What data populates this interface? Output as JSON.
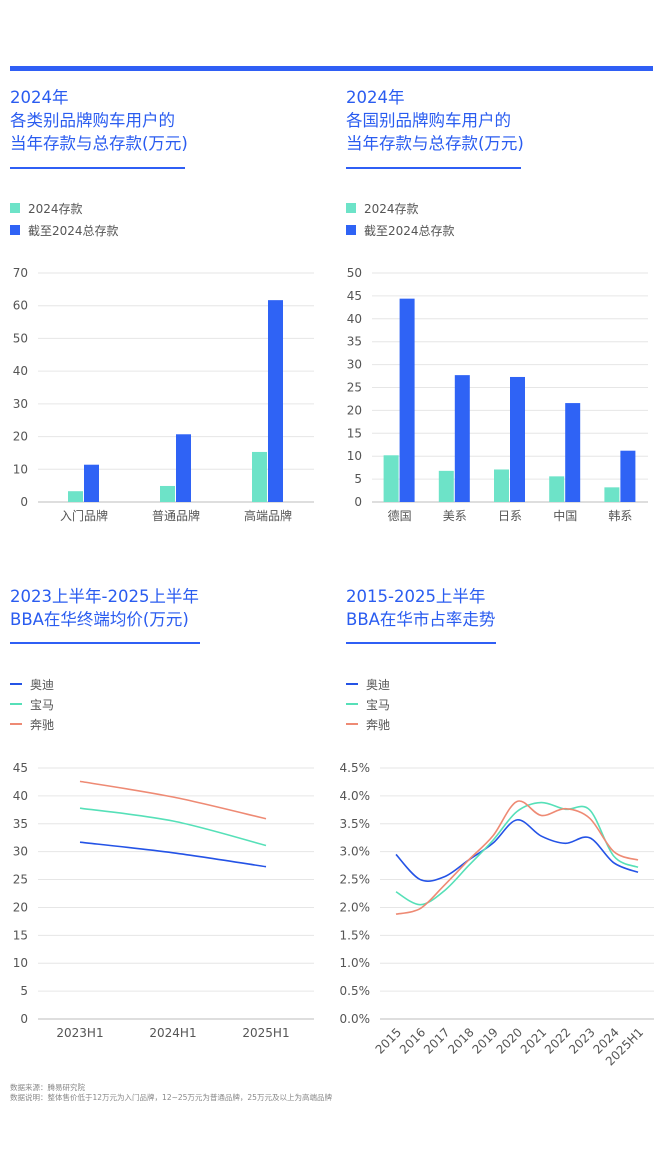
{
  "charts": [
    {
      "title_lines": [
        "2024年",
        "各类别品牌购车用户的",
        "当年存款与总存款(万元)"
      ],
      "legend": [
        {
          "label": "2024存款",
          "color": "#6de3c8",
          "kind": "bar"
        },
        {
          "label": "截至2024总存款",
          "color": "#2f63f5",
          "kind": "bar"
        }
      ]
    },
    {
      "title_lines": [
        "2024年",
        "各国别品牌购车用户的",
        "当年存款与总存款(万元)"
      ],
      "legend": [
        {
          "label": "2024存款",
          "color": "#6de3c8",
          "kind": "bar"
        },
        {
          "label": "截至2024总存款",
          "color": "#2f63f5",
          "kind": "bar"
        }
      ]
    },
    {
      "title_lines": [
        "2023上半年-2025上半年",
        "BBA在华终端均价(万元)"
      ],
      "legend": [
        {
          "label": "奥迪",
          "color": "#2453e6",
          "kind": "line"
        },
        {
          "label": "宝马",
          "color": "#56e0b8",
          "kind": "line"
        },
        {
          "label": "奔驰",
          "color": "#ee8a74",
          "kind": "line"
        }
      ]
    },
    {
      "title_lines": [
        "2015-2025上半年",
        "BBA在华市占率走势"
      ],
      "legend": [
        {
          "label": "奥迪",
          "color": "#2453e6",
          "kind": "line"
        },
        {
          "label": "宝马",
          "color": "#56e0b8",
          "kind": "line"
        },
        {
          "label": "奔驰",
          "color": "#ee8a74",
          "kind": "line"
        }
      ]
    }
  ],
  "chart_data": [
    {
      "type": "bar",
      "categories": [
        "入门品牌",
        "普通品牌",
        "高端品牌"
      ],
      "series": [
        {
          "name": "2024存款",
          "values": [
            3.3,
            4.9,
            15.3
          ],
          "color": "#6de3c8"
        },
        {
          "name": "截至2024总存款",
          "values": [
            11.4,
            20.7,
            61.7
          ],
          "color": "#2f63f5"
        }
      ],
      "ylim": [
        0,
        70
      ],
      "yticks": [
        0,
        10,
        20,
        30,
        40,
        50,
        60,
        70
      ],
      "ytick_labels": [
        "0",
        "10",
        "20",
        "30",
        "40",
        "50",
        "60",
        "70"
      ]
    },
    {
      "type": "bar",
      "categories": [
        "德国",
        "美系",
        "日系",
        "中国",
        "韩系"
      ],
      "series": [
        {
          "name": "2024存款",
          "values": [
            10.2,
            6.8,
            7.1,
            5.6,
            3.2
          ],
          "color": "#6de3c8"
        },
        {
          "name": "截至2024总存款",
          "values": [
            44.4,
            27.7,
            27.3,
            21.6,
            11.2
          ],
          "color": "#2f63f5"
        }
      ],
      "ylim": [
        0,
        50
      ],
      "yticks": [
        0,
        5,
        10,
        15,
        20,
        25,
        30,
        35,
        40,
        45,
        50
      ],
      "ytick_labels": [
        "0",
        "5",
        "10",
        "15",
        "20",
        "25",
        "30",
        "35",
        "40",
        "45",
        "50"
      ]
    },
    {
      "type": "line",
      "categories": [
        "2023H1",
        "2024H1",
        "2025H1"
      ],
      "series": [
        {
          "name": "奥迪",
          "values": [
            31.7,
            29.8,
            27.3
          ],
          "color": "#2453e6"
        },
        {
          "name": "宝马",
          "values": [
            37.8,
            35.5,
            31.1
          ],
          "color": "#56e0b8"
        },
        {
          "name": "奔驰",
          "values": [
            42.6,
            39.8,
            35.9
          ],
          "color": "#ee8a74"
        }
      ],
      "ylim": [
        0,
        45
      ],
      "yticks": [
        0,
        5,
        10,
        15,
        20,
        25,
        30,
        35,
        40,
        45
      ],
      "ytick_labels": [
        "0",
        "5",
        "10",
        "15",
        "20",
        "25",
        "30",
        "35",
        "40",
        "45"
      ]
    },
    {
      "type": "line",
      "categories": [
        "2015",
        "2016",
        "2017",
        "2018",
        "2019",
        "2020",
        "2021",
        "2022",
        "2023",
        "2024",
        "2025H1"
      ],
      "series": [
        {
          "name": "奥迪",
          "values": [
            2.95,
            2.5,
            2.55,
            2.85,
            3.15,
            3.57,
            3.28,
            3.15,
            3.25,
            2.8,
            2.63
          ],
          "color": "#2453e6"
        },
        {
          "name": "宝马",
          "values": [
            2.28,
            2.05,
            2.3,
            2.75,
            3.2,
            3.72,
            3.88,
            3.76,
            3.75,
            2.92,
            2.72
          ],
          "color": "#56e0b8"
        },
        {
          "name": "奔驰",
          "values": [
            1.88,
            1.98,
            2.4,
            2.85,
            3.28,
            3.9,
            3.65,
            3.77,
            3.6,
            3.0,
            2.85
          ],
          "color": "#ee8a74"
        }
      ],
      "ylim": [
        0,
        4.5
      ],
      "yticks": [
        0,
        0.5,
        1.0,
        1.5,
        2.0,
        2.5,
        3.0,
        3.5,
        4.0,
        4.5
      ],
      "ytick_labels": [
        "0.0%",
        "0.5%",
        "1.0%",
        "1.5%",
        "2.0%",
        "2.5%",
        "3.0%",
        "3.5%",
        "4.0%",
        "4.5%"
      ]
    }
  ],
  "footnote": {
    "line1": "数据来源：腾易研究院",
    "line2": "数据说明：整体售价低于12万元为入门品牌，12~25万元为普通品牌，25万元及以上为高端品牌"
  }
}
